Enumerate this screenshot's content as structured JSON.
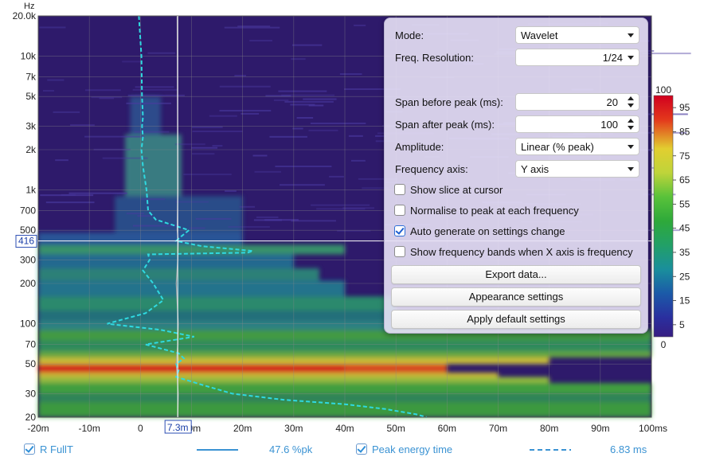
{
  "window": {
    "y_unit": "Hz",
    "cursor_freq_label": "416",
    "cursor_time_label": "7.3m"
  },
  "settings": {
    "mode_label": "Mode:",
    "mode_value": "Wavelet",
    "freq_res_label": "Freq. Resolution:",
    "freq_res_value": "1/24",
    "span_before_label": "Span before peak (ms):",
    "span_before_value": "20",
    "span_after_label": "Span after peak (ms):",
    "span_after_value": "100",
    "amplitude_label": "Amplitude:",
    "amplitude_value": "Linear (% peak)",
    "freq_axis_label": "Frequency axis:",
    "freq_axis_value": "Y axis",
    "show_slice_label": "Show slice at cursor",
    "show_slice_checked": false,
    "normalise_label": "Normalise to peak at each frequency",
    "normalise_checked": false,
    "auto_generate_label": "Auto generate on settings change",
    "auto_generate_checked": true,
    "show_bands_label": "Show frequency bands when X axis is frequency",
    "show_bands_checked": false,
    "export_label": "Export data...",
    "appearance_label": "Appearance settings",
    "defaults_label": "Apply default settings"
  },
  "colorbar": {
    "top_label": "100",
    "bottom_label": "0",
    "ticks": [
      "95",
      "85",
      "75",
      "65",
      "55",
      "45",
      "35",
      "25",
      "15",
      "5"
    ]
  },
  "footer": {
    "trace_name": "R FullT",
    "trace_value": "47.6 %pk",
    "peak_label": "Peak energy time",
    "peak_value": "6.83 ms"
  },
  "chart_data": {
    "type": "heatmap",
    "x_unit": "ms",
    "y_unit": "Hz",
    "y_scale": "log",
    "xlim": [
      -20,
      100
    ],
    "ylim": [
      20,
      20000
    ],
    "x_ticks": [
      "-20m",
      "-10m",
      "0",
      "10m",
      "20m",
      "30m",
      "40m",
      "50m",
      "60m",
      "70m",
      "80m",
      "90m",
      "100ms"
    ],
    "y_ticks": [
      "20",
      "30",
      "50",
      "70",
      "100",
      "200",
      "300",
      "500",
      "700",
      "1k",
      "2k",
      "3k",
      "5k",
      "7k",
      "10k",
      "20.0k"
    ],
    "color_scale": "% peak",
    "color_range": [
      0,
      100
    ],
    "cursor": {
      "time_ms": 7.3,
      "freq_hz": 416
    },
    "peak_energy_time": {
      "freq_hz": [
        20000,
        10000,
        5000,
        3500,
        3000,
        2500,
        2000,
        1500,
        1000,
        700,
        600,
        500,
        450,
        416,
        380,
        350,
        340,
        330,
        300,
        250,
        200,
        150,
        120,
        100,
        90,
        80,
        70,
        60,
        55,
        50,
        45,
        40,
        35,
        30,
        27,
        25,
        23,
        21,
        20
      ],
      "time_ms": [
        -0.3,
        0.2,
        0.3,
        0.5,
        0.3,
        0.5,
        0.2,
        0.5,
        1.2,
        1.5,
        3,
        9.5,
        8,
        7,
        12,
        22,
        21,
        1.5,
        1.8,
        0.5,
        2.5,
        4.5,
        1,
        -6.5,
        4,
        10.5,
        1,
        7.5,
        8.5,
        7,
        7.5,
        7,
        12,
        18,
        28,
        40,
        48,
        54,
        56
      ]
    },
    "wavelet_trace": {
      "freq_hz": [
        20000,
        1000,
        500,
        416,
        300,
        200,
        100,
        70,
        50,
        40,
        30,
        20
      ],
      "time_ms": [
        7.2,
        7.3,
        7.2,
        7.4,
        7.3,
        7.0,
        7.4,
        7.3,
        7.0,
        7.2,
        7.4,
        7.3
      ]
    }
  }
}
